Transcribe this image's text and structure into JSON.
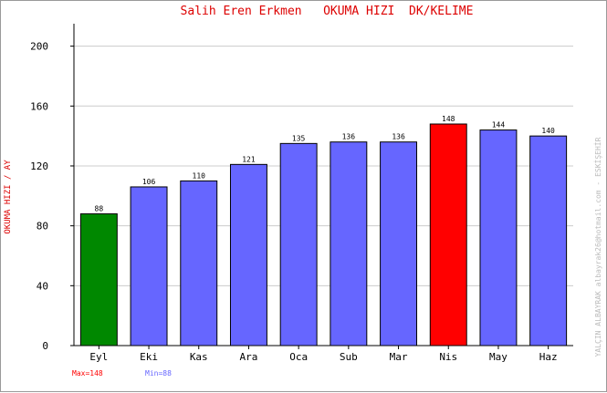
{
  "chart_data": {
    "type": "bar",
    "title": "Salih Eren Erkmen   OKUMA HIZI  DK/KELIME",
    "ylabel": "OKUMA HIZI / AY",
    "xlabel": "",
    "categories": [
      "Eyl",
      "Eki",
      "Kas",
      "Ara",
      "Oca",
      "Sub",
      "Mar",
      "Nis",
      "May",
      "Haz"
    ],
    "values": [
      88,
      106,
      110,
      121,
      135,
      136,
      136,
      148,
      144,
      140
    ],
    "bar_colors": [
      "#008800",
      "#6666ff",
      "#6666ff",
      "#6666ff",
      "#6666ff",
      "#6666ff",
      "#6666ff",
      "#ff0000",
      "#6666ff",
      "#6666ff"
    ],
    "ylim": [
      0,
      215
    ],
    "yticks": [
      0,
      40,
      80,
      120,
      160,
      200
    ],
    "grid": true,
    "data_labels": true
  },
  "stats": {
    "max_label": "Max=148",
    "min_label": "Min=88",
    "max_color": "#ff0000",
    "min_color": "#6666ff"
  },
  "watermark": "YALÇIN ALBAYRAK  albayrak26@hotmail.com  -  ESKİŞEHİR",
  "colors": {
    "title": "#dd0000",
    "ylabel": "#dd0000",
    "axis": "#000000",
    "grid": "#cccccc",
    "watermark": "#bbbbbb"
  }
}
